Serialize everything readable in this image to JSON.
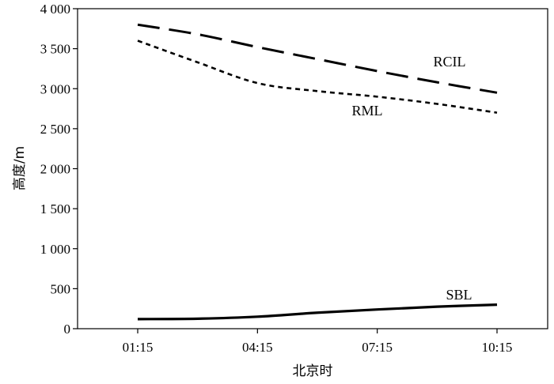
{
  "chart_data": {
    "type": "line",
    "title": "",
    "xlabel": "北京时",
    "ylabel": "高度/m",
    "x": [
      "01:15",
      "02:45",
      "04:15",
      "05:45",
      "07:15",
      "08:45",
      "10:15"
    ],
    "xticks": [
      "01:15",
      "04:15",
      "07:15",
      "10:15"
    ],
    "yticks": [
      "0",
      "500",
      "1 000",
      "1 500",
      "2 000",
      "2 500",
      "3 000",
      "3 500",
      "4 000"
    ],
    "ylim": [
      0,
      4000
    ],
    "grid": false,
    "series": [
      {
        "name": "RCIL",
        "style": "long-dash",
        "values": [
          3800,
          3680,
          3520,
          3370,
          3220,
          3080,
          2950
        ]
      },
      {
        "name": "RML",
        "style": "short-dash",
        "values": [
          3600,
          3330,
          3070,
          2970,
          2900,
          2810,
          2700
        ]
      },
      {
        "name": "SBL",
        "style": "solid",
        "values": [
          120,
          125,
          150,
          200,
          240,
          275,
          300
        ]
      }
    ],
    "series_label_positions": [
      "upper-right of line",
      "below line",
      "above line"
    ],
    "line_color": "#000000"
  }
}
